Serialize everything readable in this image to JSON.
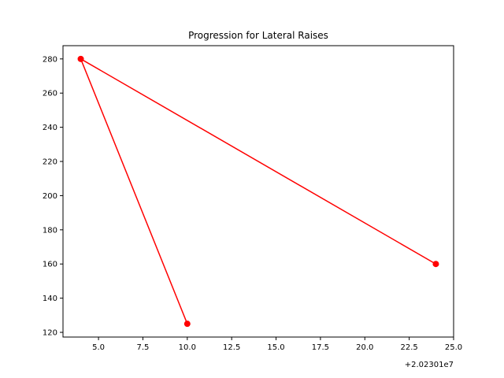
{
  "chart_data": {
    "type": "line",
    "title": "Progression for Lateral Raises",
    "xlabel": "",
    "ylabel": "",
    "x_offset_label": "+2.02301e7",
    "x_offset_value": 20230100,
    "xlim": [
      3.0,
      25.0
    ],
    "ylim": [
      117.25,
      287.75
    ],
    "x_ticks": [
      5.0,
      7.5,
      10.0,
      12.5,
      15.0,
      17.5,
      20.0,
      22.5,
      25.0
    ],
    "x_tick_labels": [
      "5.0",
      "7.5",
      "10.0",
      "12.5",
      "15.0",
      "17.5",
      "20.0",
      "22.5",
      "25.0"
    ],
    "y_ticks": [
      120,
      140,
      160,
      180,
      200,
      220,
      240,
      260,
      280
    ],
    "y_tick_labels": [
      "120",
      "140",
      "160",
      "180",
      "200",
      "220",
      "240",
      "260",
      "280"
    ],
    "grid": false,
    "series": [
      {
        "color": "#ff0000",
        "marker": "circle",
        "x": [
          20230110,
          20230104,
          20230124
        ],
        "y": [
          125,
          280,
          160
        ]
      }
    ]
  }
}
